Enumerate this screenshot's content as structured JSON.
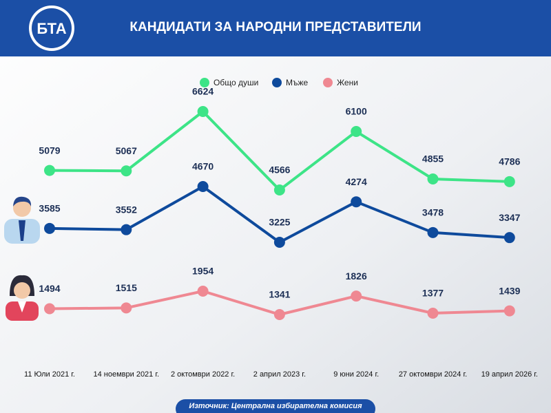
{
  "logo": "БТА",
  "chart_data": {
    "type": "line",
    "title": "КАНДИДАТИ ЗА НАРОДНИ ПРЕДСТАВИТЕЛИ",
    "categories": [
      "11 Юли 2021 г.",
      "14 ноември 2021 г.",
      "2 октомври 2022 г.",
      "2 април 2023 г.",
      "9 юни 2024 г.",
      "27 октомври 2024 г.",
      "19 април 2026 г."
    ],
    "series": [
      {
        "name": "Общо души",
        "color": "#3de487",
        "values": [
          5079,
          5067,
          6624,
          4566,
          6100,
          4855,
          4786
        ]
      },
      {
        "name": "Мъже",
        "color": "#0e4a9c",
        "values": [
          3585,
          3552,
          4670,
          3225,
          4274,
          3478,
          3347
        ]
      },
      {
        "name": "Жени",
        "color": "#ef8892",
        "values": [
          1494,
          1515,
          1954,
          1341,
          1826,
          1377,
          1439
        ]
      }
    ],
    "source": "Източник: Централна избирателна комисия"
  }
}
